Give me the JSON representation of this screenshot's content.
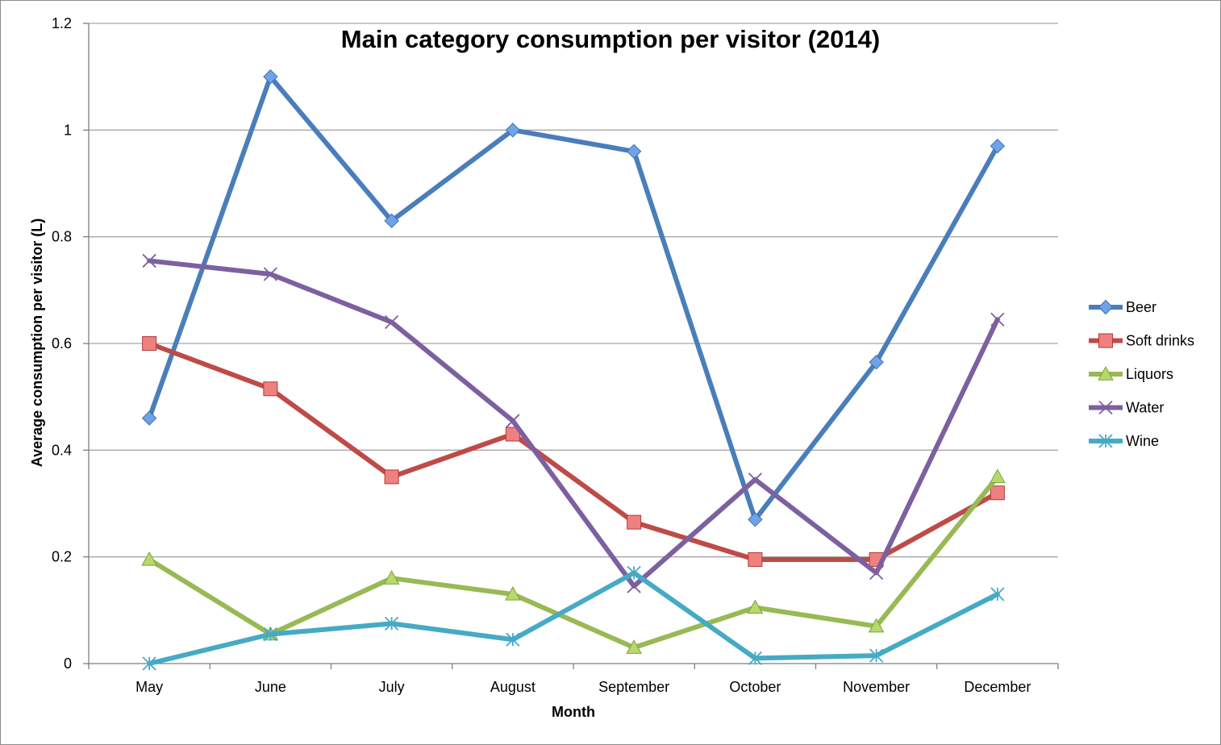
{
  "chart_data": {
    "type": "line",
    "title": "Main category consumption per visitor (2014)",
    "xlabel": "Month",
    "ylabel": "Average consumption per visitor (L)",
    "categories": [
      "May",
      "June",
      "July",
      "August",
      "September",
      "October",
      "November",
      "December"
    ],
    "ylim": [
      0,
      1.2
    ],
    "yticks": [
      "0",
      "0.2",
      "0.4",
      "0.6",
      "0.8",
      "1",
      "1.2"
    ],
    "grid": true,
    "legend_position": "right",
    "series": [
      {
        "name": "Beer",
        "color": "#4a7ebb",
        "marker": "diamond",
        "marker_fill": "#6fa3e8",
        "values": [
          0.46,
          1.1,
          0.83,
          1.0,
          0.96,
          0.27,
          0.565,
          0.97
        ]
      },
      {
        "name": "Soft drinks",
        "color": "#be4b48",
        "marker": "square",
        "marker_fill": "#f08080",
        "values": [
          0.6,
          0.515,
          0.35,
          0.43,
          0.265,
          0.195,
          0.195,
          0.32
        ]
      },
      {
        "name": "Liquors",
        "color": "#98b954",
        "marker": "triangle",
        "marker_fill": "#b5d96b",
        "values": [
          0.195,
          0.055,
          0.16,
          0.13,
          0.03,
          0.105,
          0.07,
          0.35
        ]
      },
      {
        "name": "Water",
        "color": "#7d60a0",
        "marker": "x",
        "marker_fill": "#7d60a0",
        "values": [
          0.755,
          0.73,
          0.64,
          0.455,
          0.145,
          0.345,
          0.17,
          0.645
        ]
      },
      {
        "name": "Wine",
        "color": "#46aac5",
        "marker": "asterisk",
        "marker_fill": "#46aac5",
        "values": [
          0.0,
          0.055,
          0.075,
          0.045,
          0.17,
          0.01,
          0.015,
          0.13
        ]
      }
    ]
  }
}
